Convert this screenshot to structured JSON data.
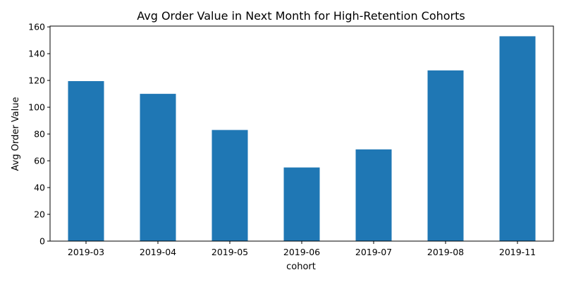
{
  "chart_data": {
    "type": "bar",
    "title": "Avg Order Value in Next Month for High-Retention Cohorts",
    "xlabel": "cohort",
    "ylabel": "Avg Order Value",
    "categories": [
      "2019-03",
      "2019-04",
      "2019-05",
      "2019-06",
      "2019-07",
      "2019-08",
      "2019-11"
    ],
    "values": [
      119.5,
      110,
      83,
      55,
      68.5,
      127.5,
      153
    ],
    "ylim": [
      0,
      160.6
    ],
    "yticks": [
      0,
      20,
      40,
      60,
      80,
      100,
      120,
      140,
      160
    ],
    "grid": false,
    "legend": "none",
    "bar_color": "#1f77b4"
  }
}
